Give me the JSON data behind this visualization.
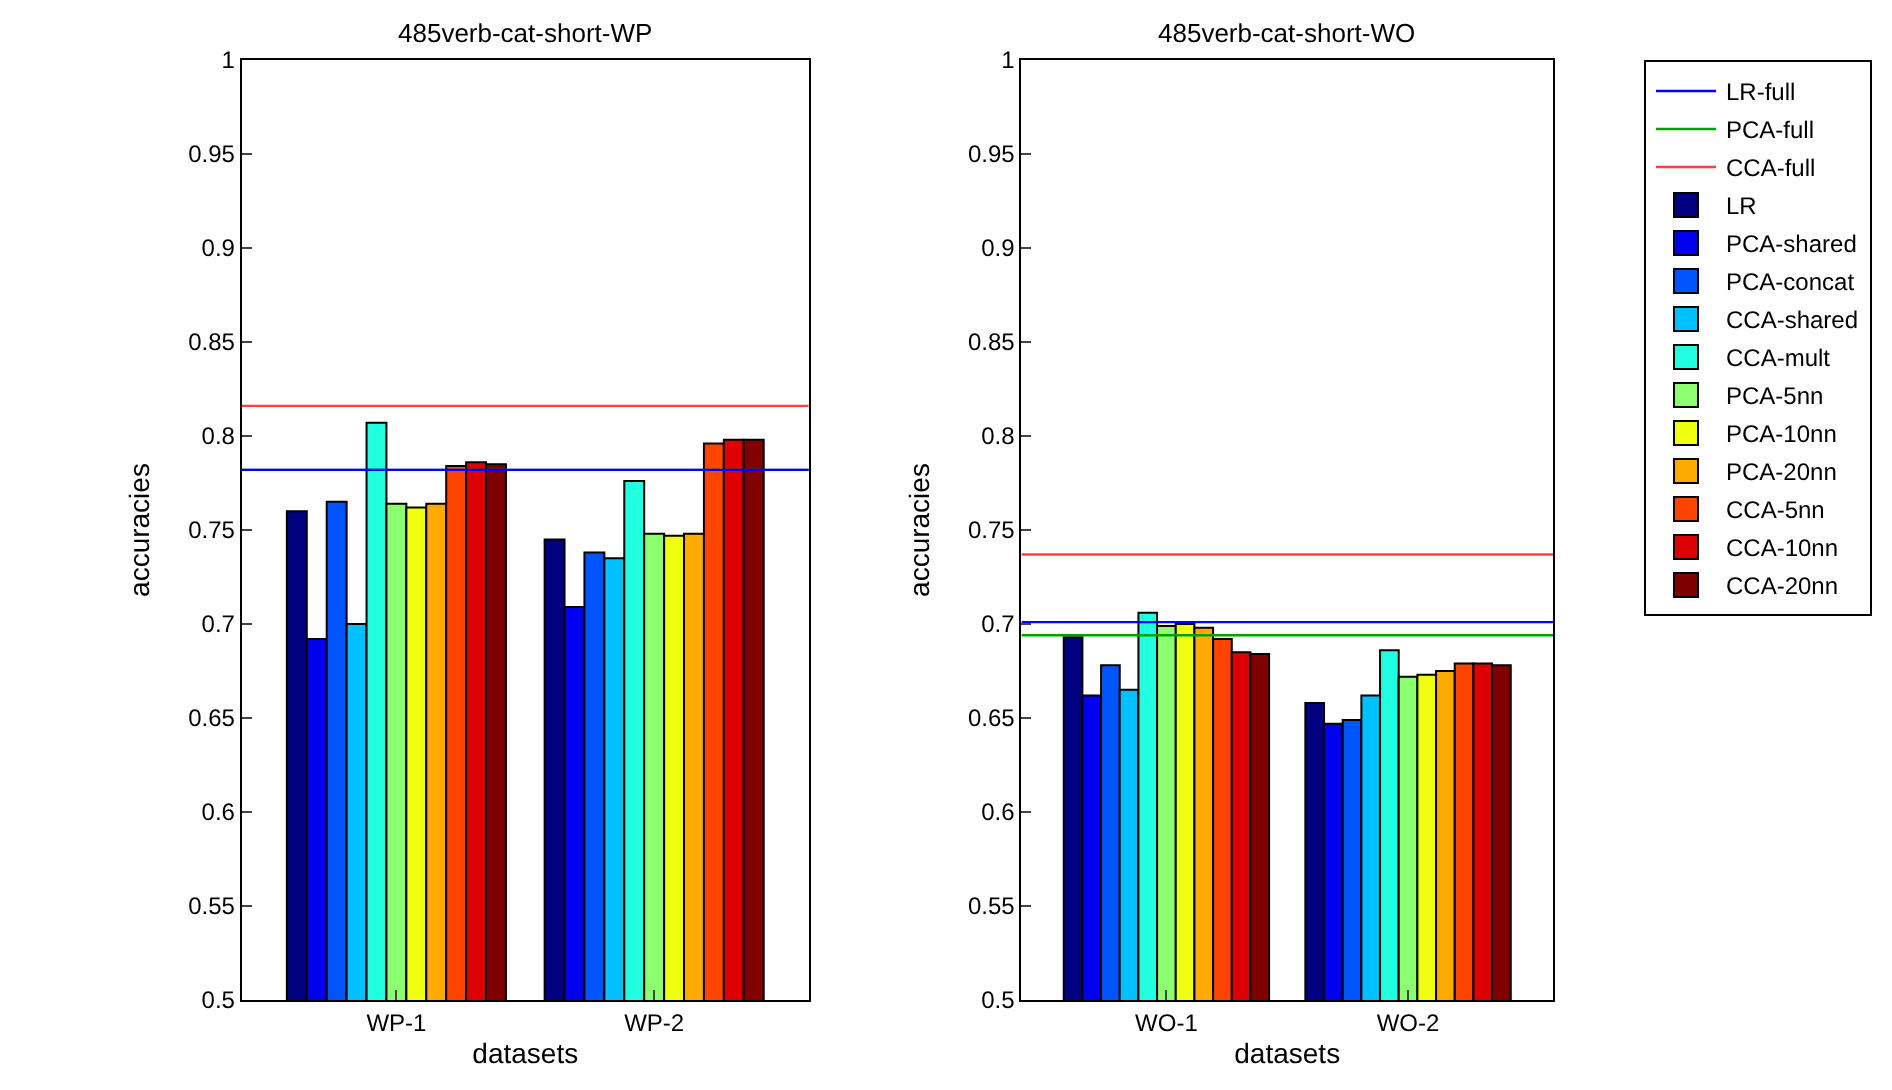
{
  "chart_data": [
    {
      "type": "bar",
      "title": "485verb-cat-short-WP",
      "xlabel": "datasets",
      "ylabel": "accuracies",
      "categories": [
        "WP-1",
        "WP-2"
      ],
      "ylim": [
        0.5,
        1
      ],
      "yticks": [
        0.5,
        0.55,
        0.6,
        0.65,
        0.7,
        0.75,
        0.8,
        0.85,
        0.9,
        0.95,
        1
      ],
      "grid": false,
      "series": [
        {
          "color": "#000080",
          "values": [
            0.76,
            0.745
          ]
        },
        {
          "color": "#0000ee",
          "values": [
            0.692,
            0.709
          ]
        },
        {
          "color": "#0055ff",
          "values": [
            0.765,
            0.738
          ]
        },
        {
          "color": "#00c0ff",
          "values": [
            0.7,
            0.735
          ]
        },
        {
          "color": "#20ffe0",
          "values": [
            0.807,
            0.776
          ]
        },
        {
          "color": "#8cff70",
          "values": [
            0.764,
            0.748
          ]
        },
        {
          "color": "#f0ff10",
          "values": [
            0.762,
            0.747
          ]
        },
        {
          "color": "#ffaa00",
          "values": [
            0.764,
            0.748
          ]
        },
        {
          "color": "#ff4400",
          "values": [
            0.784,
            0.796
          ]
        },
        {
          "color": "#dd0000",
          "values": [
            0.786,
            0.798
          ]
        },
        {
          "color": "#800000",
          "values": [
            0.785,
            0.798
          ]
        }
      ],
      "ref_lines": [
        {
          "axis": "y",
          "value": 0.782,
          "color": "#00a000"
        },
        {
          "axis": "y",
          "value": 0.782,
          "color": "#0000ff"
        },
        {
          "axis": "y",
          "value": 0.816,
          "color": "#ff4040"
        }
      ]
    },
    {
      "type": "bar",
      "title": "485verb-cat-short-WO",
      "xlabel": "datasets",
      "ylabel": "accuracies",
      "categories": [
        "WO-1",
        "WO-2"
      ],
      "ylim": [
        0.5,
        1
      ],
      "yticks": [
        0.5,
        0.55,
        0.6,
        0.65,
        0.7,
        0.75,
        0.8,
        0.85,
        0.9,
        0.95,
        1
      ],
      "grid": false,
      "legend": "top right",
      "series": [
        {
          "name": "LR",
          "color": "#000080",
          "values": [
            0.693,
            0.658
          ]
        },
        {
          "name": "PCA-shared",
          "color": "#0000ee",
          "values": [
            0.662,
            0.647
          ]
        },
        {
          "name": "PCA-concat",
          "color": "#0055ff",
          "values": [
            0.678,
            0.649
          ]
        },
        {
          "name": "CCA-shared",
          "color": "#00c0ff",
          "values": [
            0.665,
            0.662
          ]
        },
        {
          "name": "CCA-mult",
          "color": "#20ffe0",
          "values": [
            0.706,
            0.686
          ]
        },
        {
          "name": "PCA-5nn",
          "color": "#8cff70",
          "values": [
            0.699,
            0.672
          ]
        },
        {
          "name": "PCA-10nn",
          "color": "#f0ff10",
          "values": [
            0.7,
            0.673
          ]
        },
        {
          "name": "PCA-20nn",
          "color": "#ffaa00",
          "values": [
            0.698,
            0.675
          ]
        },
        {
          "name": "CCA-5nn",
          "color": "#ff4400",
          "values": [
            0.692,
            0.679
          ]
        },
        {
          "name": "CCA-10nn",
          "color": "#dd0000",
          "values": [
            0.685,
            0.679
          ]
        },
        {
          "name": "CCA-20nn",
          "color": "#800000",
          "values": [
            0.684,
            0.678
          ]
        }
      ],
      "ref_lines": [
        {
          "axis": "y",
          "value": 0.701,
          "label": "LR-full",
          "color": "#0000ff"
        },
        {
          "axis": "y",
          "value": 0.694,
          "label": "PCA-full",
          "color": "#00a000"
        },
        {
          "axis": "y",
          "value": 0.737,
          "label": "CCA-full",
          "color": "#ff4040"
        }
      ]
    }
  ]
}
